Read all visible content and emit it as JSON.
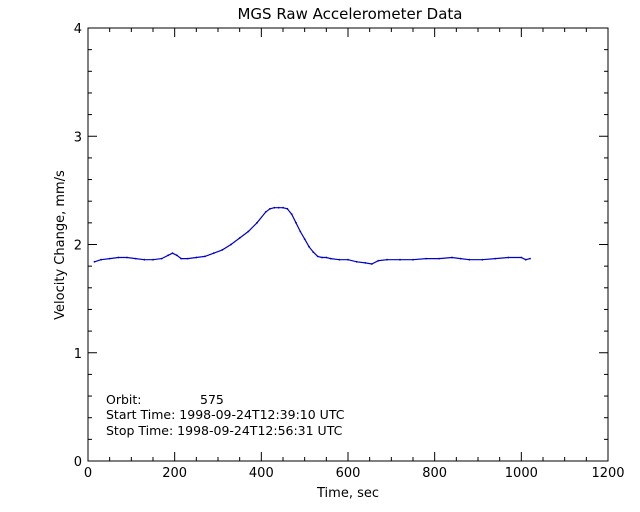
{
  "chart_data": {
    "type": "line",
    "title": "MGS Raw Accelerometer Data",
    "xlabel": "Time, sec",
    "ylabel": "Velocity Change, mm/s",
    "xlim": [
      0,
      1200
    ],
    "ylim": [
      0,
      4
    ],
    "x_ticks": [
      "0",
      "200",
      "400",
      "600",
      "800",
      "1000",
      "1200"
    ],
    "y_ticks": [
      "0",
      "1",
      "2",
      "3",
      "4"
    ],
    "grid": false,
    "line_color": "#0000cc",
    "series": [
      {
        "x": [
          15,
          30,
          50,
          70,
          90,
          110,
          130,
          150,
          170,
          185,
          195,
          205,
          215,
          230,
          250,
          270,
          290,
          310,
          330,
          350,
          370,
          390,
          410,
          420,
          430,
          440,
          450,
          460,
          470,
          480,
          490,
          500,
          510,
          520,
          530,
          540,
          550,
          560,
          580,
          600,
          620,
          640,
          655,
          670,
          690,
          720,
          750,
          780,
          810,
          840,
          860,
          880,
          910,
          940,
          970,
          1000,
          1010,
          1020
        ],
        "y": [
          1.84,
          1.86,
          1.87,
          1.88,
          1.88,
          1.87,
          1.86,
          1.86,
          1.87,
          1.9,
          1.92,
          1.9,
          1.87,
          1.87,
          1.88,
          1.89,
          1.92,
          1.95,
          2.0,
          2.06,
          2.12,
          2.2,
          2.3,
          2.33,
          2.34,
          2.34,
          2.34,
          2.33,
          2.28,
          2.2,
          2.12,
          2.05,
          1.98,
          1.93,
          1.89,
          1.88,
          1.88,
          1.87,
          1.86,
          1.86,
          1.84,
          1.83,
          1.82,
          1.85,
          1.86,
          1.86,
          1.86,
          1.87,
          1.87,
          1.88,
          1.87,
          1.86,
          1.86,
          1.87,
          1.88,
          1.88,
          1.86,
          1.87
        ]
      }
    ],
    "annotations": {
      "orbit_label": "Orbit:",
      "orbit_value": "575",
      "start_time": "Start Time: 1998-09-24T12:39:10 UTC",
      "stop_time": "Stop Time: 1998-09-24T12:56:31 UTC"
    }
  }
}
